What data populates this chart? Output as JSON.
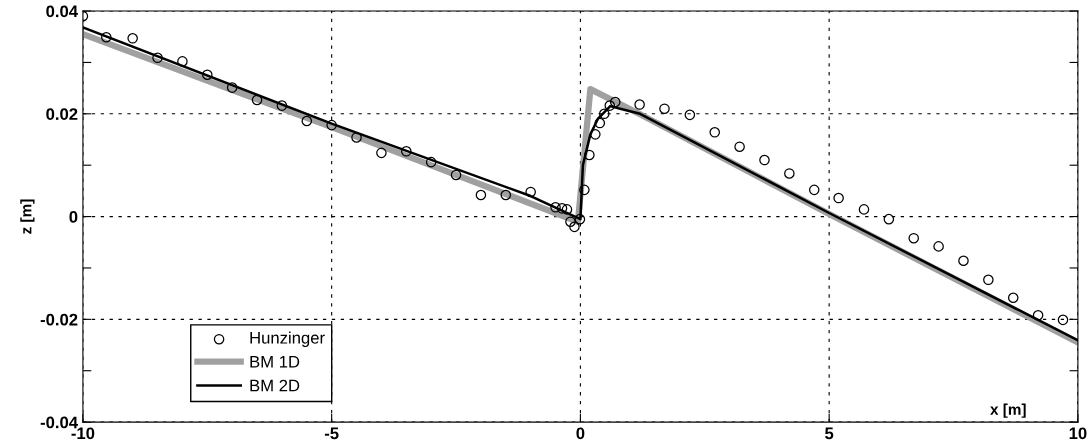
{
  "chart_data": {
    "type": "line",
    "xlabel": "x [m]",
    "ylabel": "z [m]",
    "xlim": [
      -10,
      10
    ],
    "xticks": [
      -10,
      -5,
      0,
      5,
      10
    ],
    "ylim": [
      -0.04,
      0.04
    ],
    "yticks": [
      -0.04,
      {
        "value": -0.03,
        "label": null
      },
      -0.02,
      {
        "value": -0.01,
        "label": null
      },
      0,
      {
        "value": 0.01,
        "label": null
      },
      0.02,
      {
        "value": 0.03,
        "label": null
      },
      0.04
    ],
    "grid": true,
    "legend": "bottom left",
    "series": [
      {
        "name": "Hunzinger",
        "type": "scatter",
        "marker": "circle",
        "color": "#000000",
        "x": [
          -10,
          -9.53,
          -9.0,
          -8.5,
          -8.0,
          -7.5,
          -7.0,
          -6.5,
          -6.0,
          -5.5,
          -5.0,
          -4.5,
          -4.0,
          -3.5,
          -3.0,
          -2.5,
          -2.0,
          -1.5,
          -1.0,
          -0.5,
          -0.37,
          -0.27,
          -0.2,
          -0.12,
          -0.01,
          0.08,
          0.18,
          0.3,
          0.39,
          0.48,
          0.59,
          0.7,
          1.19,
          1.69,
          2.2,
          2.7,
          3.2,
          3.7,
          4.2,
          4.7,
          5.19,
          5.7,
          6.2,
          6.7,
          7.2,
          7.7,
          8.2,
          8.7,
          9.2,
          9.7
        ],
        "values": [
          0.039,
          0.0349,
          0.0347,
          0.0309,
          0.0302,
          0.0276,
          0.0251,
          0.0227,
          0.0216,
          0.0186,
          0.0178,
          0.0154,
          0.0124,
          0.0127,
          0.0106,
          0.0081,
          0.0042,
          0.0042,
          0.0048,
          0.0018,
          0.0016,
          0.0014,
          -0.001,
          -0.002,
          -0.0005,
          0.0052,
          0.012,
          0.016,
          0.0182,
          0.02,
          0.0216,
          0.0223,
          0.0218,
          0.021,
          0.0198,
          0.0164,
          0.0136,
          0.011,
          0.0084,
          0.0052,
          0.0036,
          0.0014,
          -0.0005,
          -0.0042,
          -0.0058,
          -0.0086,
          -0.0123,
          -0.0158,
          -0.0192,
          -0.0201
        ]
      },
      {
        "name": "BM 1D",
        "color": "#a0a0a0",
        "x": [
          -10,
          -5,
          -0.05,
          0.2,
          1.2,
          5,
          10
        ],
        "values": [
          0.0355,
          0.0174,
          -0.001,
          0.0248,
          0.0199,
          0.0005,
          -0.0245
        ]
      },
      {
        "name": "BM 2D",
        "color": "#000000",
        "x": [
          -10,
          -5,
          -1,
          0,
          0.05,
          0.2,
          0.35,
          0.6,
          0.8,
          1.2,
          5,
          10
        ],
        "values": [
          0.0368,
          0.0181,
          0.004,
          -0.0005,
          0.01,
          0.016,
          0.019,
          0.0215,
          0.021,
          0.02,
          0.0007,
          -0.0241
        ]
      }
    ]
  }
}
